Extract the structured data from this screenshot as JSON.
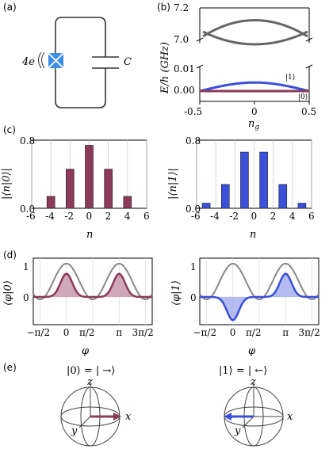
{
  "panels": {
    "a": {
      "label": "(a)",
      "flux_label": "4e",
      "cap_label": "C"
    },
    "b": {
      "label": "(b)",
      "ylabel": "E/h (GHz)",
      "xlabel": "n_g",
      "upper_ticks": [
        "7.2",
        "7.0"
      ],
      "lower_ticks": [
        "0.01",
        "0.00"
      ],
      "xticks": [
        "-0.5",
        "0",
        "0.5"
      ],
      "state_labels": [
        "|1⟩",
        "|0⟩"
      ]
    },
    "c": {
      "label": "(c)",
      "left_ylabel": "|⟨n|0⟩|",
      "right_ylabel": "|⟨n|1⟩|",
      "yticks": [
        "0.8",
        "0.0"
      ],
      "xlabel": "n",
      "left_xticks": [
        "-6",
        "-4",
        "-2",
        "0",
        "2",
        "4",
        "6"
      ],
      "right_xticks": [
        "-6",
        "-4",
        "-2",
        "0",
        "2",
        "4",
        "6"
      ]
    },
    "d": {
      "label": "(d)",
      "left_ylabel": "⟨φ|0⟩",
      "right_ylabel": "⟨φ|1⟩",
      "yticks": [
        "1",
        "0"
      ],
      "xlabel": "φ",
      "xticks": [
        "−π/2",
        "0",
        "π/2",
        "π",
        "3π/2"
      ]
    },
    "e": {
      "label": "(e)",
      "left_title": "|0⟩ = | →⟩",
      "right_title": "|1⟩ = | ←⟩",
      "axes": [
        "z",
        "x",
        "y"
      ]
    }
  },
  "colors": {
    "maroon": "#8b3a5a",
    "maroon_fill": "#c89aab",
    "blue": "#3b4fd8",
    "blue_fill": "#a8b0ee",
    "gray": "#888888",
    "qubit": "#3b8de8"
  },
  "chart_data": [
    {
      "type": "line",
      "panel": "b",
      "series": [
        {
          "name": "|1⟩",
          "x": [
            -0.5,
            -0.25,
            0,
            0.25,
            0.5
          ],
          "values": [
            0.0,
            0.0028,
            0.004,
            0.0028,
            0.0
          ]
        },
        {
          "name": "|0⟩",
          "x": [
            -0.5,
            0,
            0.5
          ],
          "values": [
            0.0,
            0.0,
            0.0
          ]
        }
      ],
      "xlim": [
        -0.5,
        0.5
      ]
    },
    {
      "type": "bar",
      "panel": "c-left",
      "categories": [
        -6,
        -4,
        -2,
        0,
        2,
        4,
        6
      ],
      "values": [
        0.0,
        0.14,
        0.46,
        0.74,
        0.46,
        0.14,
        0.0
      ],
      "ylim": [
        0,
        0.8
      ]
    },
    {
      "type": "bar",
      "panel": "c-right",
      "categories": [
        -5,
        -3,
        -1,
        1,
        3,
        5
      ],
      "values": [
        0.06,
        0.28,
        0.66,
        0.66,
        0.28,
        0.06
      ],
      "ylim": [
        0,
        0.8
      ]
    }
  ]
}
